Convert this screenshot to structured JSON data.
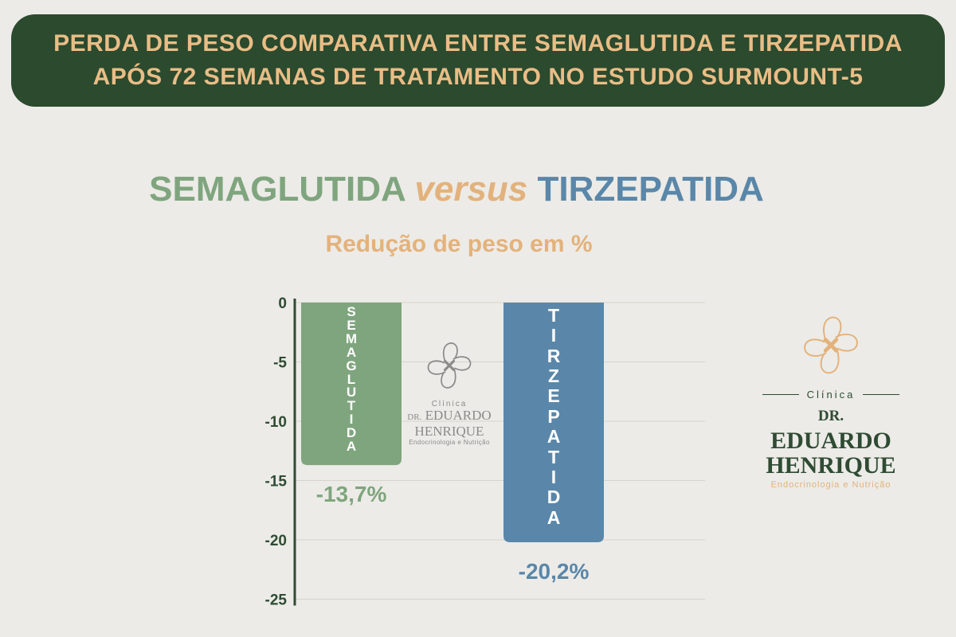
{
  "header": {
    "line1": "PERDA DE PESO COMPARATIVA ENTRE SEMAGLUTIDA E TIRZEPATIDA",
    "line2": "APÓS 72 SEMANAS DE TRATAMENTO NO  ESTUDO SURMOUNT-5"
  },
  "subtitle": {
    "left": "SEMAGLUTIDA",
    "middle": "versus",
    "right": "TIRZEPATIDA"
  },
  "metric_label": "Redução de peso em %",
  "chart_data": {
    "type": "bar",
    "categories": [
      "SEMAGLUTIDA",
      "TIRZEPATIDA"
    ],
    "values": [
      -13.7,
      -20.2
    ],
    "data_labels": [
      "-13,7%",
      "-20,2%"
    ],
    "y_ticks": [
      "0",
      "-5",
      "-10",
      "-15",
      "-20",
      "-25"
    ],
    "ylim": [
      -25,
      0
    ],
    "grid": true,
    "colors": [
      "#7fa57e",
      "#5a87a9"
    ],
    "axis_color": "#2f4b33"
  },
  "watermark": {
    "clinica": "Clínica",
    "name_line1_prefix": "DR.",
    "name_line1": "EDUARDO",
    "name_line2": "HENRIQUE",
    "specialty": "Endocrinologia e Nutrição"
  },
  "logo": {
    "clinica": "Clínica",
    "name_line1_prefix": "DR.",
    "name_line1": "EDUARDO",
    "name_line2": "HENRIQUE",
    "specialty": "Endocrinologia e Nutrição",
    "colors": {
      "primary": "#2f4b33",
      "accent": "#e3b27c"
    }
  }
}
